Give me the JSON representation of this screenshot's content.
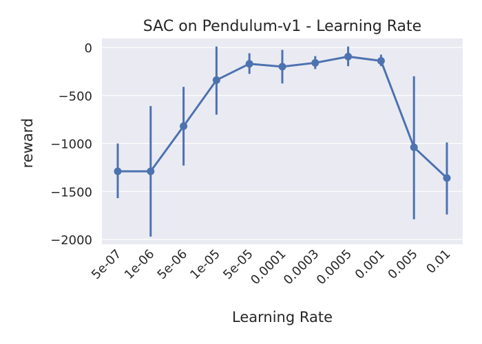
{
  "chart_data": {
    "type": "line",
    "title": "SAC on Pendulum-v1 - Learning Rate",
    "xlabel": "Learning Rate",
    "ylabel": "reward",
    "categories": [
      "5e-07",
      "1e-06",
      "5e-06",
      "1e-05",
      "5e-05",
      "0.0001",
      "0.0003",
      "0.0005",
      "0.001",
      "0.005",
      "0.01"
    ],
    "series": [
      {
        "values": [
          -1290,
          -1290,
          -820,
          -340,
          -170,
          -200,
          -160,
          -95,
          -140,
          -1040,
          -1360
        ],
        "error_low": [
          -1570,
          -1970,
          -1230,
          -700,
          -275,
          -375,
          -225,
          -195,
          -195,
          -1790,
          -1740
        ],
        "error_high": [
          -1000,
          -610,
          -410,
          10,
          -60,
          -25,
          -90,
          10,
          -75,
          -300,
          -990
        ]
      }
    ],
    "ylim": [
      -2050,
      100
    ],
    "yticks": [
      0,
      -500,
      -1000,
      -1500,
      -2000
    ],
    "ytick_labels": [
      "0",
      "−500",
      "−1000",
      "−1500",
      "−2000"
    ],
    "grid": true,
    "colors": {
      "line": "#4c72b0",
      "background": "#eaeaf2",
      "grid": "#ffffff"
    }
  }
}
